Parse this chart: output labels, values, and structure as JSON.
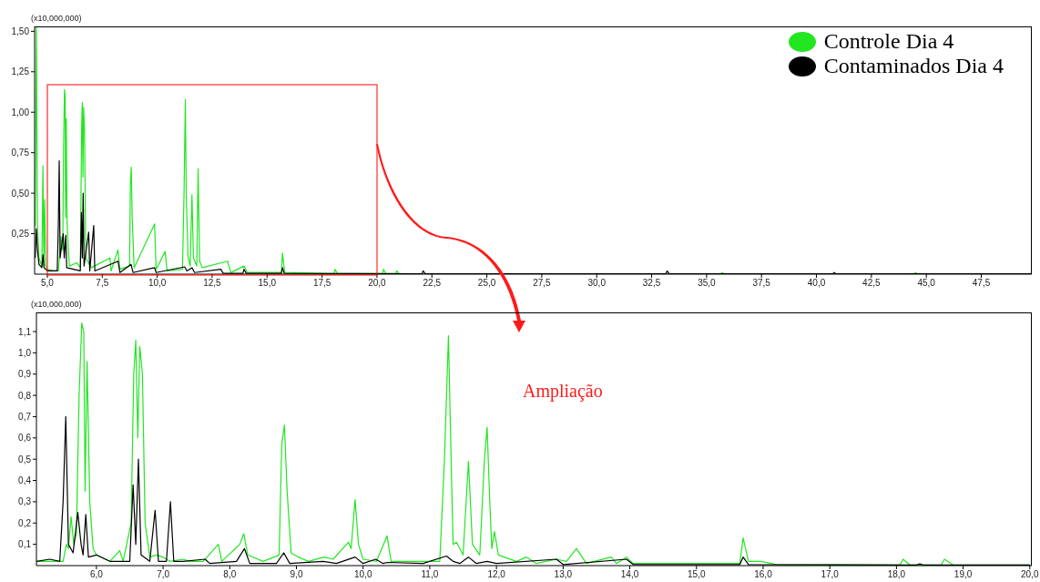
{
  "chart_data": [
    {
      "type": "line",
      "ylabel": "(x10,000,000)",
      "xlim": [
        4.42,
        49.8
      ],
      "ylim": [
        0,
        1.53
      ],
      "xticks": [
        {
          "value": 5,
          "label": "5,0"
        },
        {
          "value": 7.5,
          "label": "7,5"
        },
        {
          "value": 10,
          "label": "10,0"
        },
        {
          "value": 12.5,
          "label": "12,5"
        },
        {
          "value": 15,
          "label": "15,0"
        },
        {
          "value": 17.5,
          "label": "17,5"
        },
        {
          "value": 20,
          "label": "20,0"
        },
        {
          "value": 22.5,
          "label": "22,5"
        },
        {
          "value": 25,
          "label": "25,0"
        },
        {
          "value": 27.5,
          "label": "27,5"
        },
        {
          "value": 30,
          "label": "30,0"
        },
        {
          "value": 32.5,
          "label": "32,5"
        },
        {
          "value": 35,
          "label": "35,0"
        },
        {
          "value": 37.5,
          "label": "37,5"
        },
        {
          "value": 40,
          "label": "40,0"
        },
        {
          "value": 42.5,
          "label": "42,5"
        },
        {
          "value": 45,
          "label": "45,0"
        },
        {
          "value": 47.5,
          "label": "47,5"
        }
      ],
      "yticks": [
        {
          "value": 0.25,
          "label": "0,25"
        },
        {
          "value": 0.5,
          "label": "0,50"
        },
        {
          "value": 0.75,
          "label": "0,75"
        },
        {
          "value": 1.0,
          "label": "1,00"
        },
        {
          "value": 1.25,
          "label": "1,25"
        },
        {
          "value": 1.5,
          "label": "1,50"
        }
      ],
      "legend": "top right",
      "marker": "none",
      "line_style": "solid",
      "series": [
        {
          "name": "Controle Dia 4",
          "color": "#22e622",
          "x": [
            4.45,
            4.5,
            4.55,
            4.62,
            4.75,
            4.8,
            4.84,
            4.88,
            4.92,
            4.97,
            5.3,
            5.5,
            5.55,
            5.62,
            5.7,
            5.74,
            5.78,
            5.81,
            5.83,
            5.86,
            5.9,
            6.0,
            6.35,
            6.5,
            6.56,
            6.59,
            6.62,
            6.65,
            6.69,
            6.75,
            7.0,
            7.85,
            7.9,
            8.21,
            8.3,
            8.74,
            8.78,
            8.82,
            8.86,
            8.95,
            9.88,
            9.95,
            10.36,
            10.45,
            11.15,
            11.22,
            11.28,
            11.32,
            11.4,
            11.5,
            11.58,
            11.65,
            11.8,
            11.86,
            11.93,
            12.05,
            13.2,
            13.35,
            13.95,
            14.1,
            15.65,
            15.7,
            15.8,
            18.05,
            18.1,
            18.2,
            20.25,
            20.3,
            20.4,
            20.85,
            20.9,
            21.0,
            35.65,
            35.7,
            35.8,
            44.45,
            44.5,
            44.6,
            49.8
          ],
          "values": [
            0.3,
            1.53,
            0.3,
            0.1,
            0.05,
            0.67,
            0.05,
            0.46,
            0.06,
            0.03,
            0.02,
            0.02,
            0.1,
            0.23,
            0.15,
            0.8,
            1.14,
            1.1,
            0.35,
            0.96,
            0.3,
            0.05,
            0.07,
            0.04,
            0.9,
            1.06,
            0.6,
            1.03,
            0.9,
            0.1,
            0.04,
            0.1,
            0.02,
            0.15,
            0.03,
            0.05,
            0.57,
            0.66,
            0.35,
            0.04,
            0.31,
            0.03,
            0.14,
            0.02,
            0.03,
            0.5,
            1.08,
            0.5,
            0.11,
            0.05,
            0.49,
            0.1,
            0.05,
            0.65,
            0.08,
            0.04,
            0.08,
            0.01,
            0.05,
            0.01,
            0.01,
            0.13,
            0.01,
            0.003,
            0.03,
            0.003,
            0.003,
            0.03,
            0.003,
            0.003,
            0.02,
            0.003,
            0.002,
            0.01,
            0.002,
            0.002,
            0.01,
            0.002,
            0.002
          ]
        },
        {
          "name": "Contaminados Dia 4",
          "color": "#000000",
          "x": [
            4.45,
            4.5,
            4.55,
            4.62,
            4.75,
            4.8,
            4.85,
            5.0,
            5.45,
            5.5,
            5.54,
            5.58,
            5.72,
            5.77,
            5.84,
            5.88,
            6.5,
            6.55,
            6.59,
            6.63,
            6.67,
            6.88,
            6.93,
            7.11,
            7.16,
            8.22,
            8.3,
            8.81,
            8.9,
            9.88,
            9.95,
            11.25,
            11.35,
            11.58,
            11.7,
            12.9,
            13.0,
            13.9,
            13.95,
            14.05,
            15.65,
            15.7,
            15.78,
            22.05,
            22.1,
            22.2,
            33.15,
            33.2,
            33.3,
            40.75,
            40.8,
            40.9,
            49.8
          ],
          "values": [
            0.1,
            0.28,
            0.15,
            0.06,
            0.04,
            0.12,
            0.04,
            0.02,
            0.02,
            0.3,
            0.7,
            0.1,
            0.25,
            0.1,
            0.24,
            0.04,
            0.02,
            0.38,
            0.1,
            0.5,
            0.05,
            0.26,
            0.02,
            0.3,
            0.02,
            0.08,
            0.01,
            0.06,
            0.01,
            0.04,
            0.01,
            0.045,
            0.02,
            0.04,
            0.01,
            0.03,
            0.005,
            0.005,
            0.03,
            0.005,
            0.005,
            0.04,
            0.005,
            0.002,
            0.02,
            0.002,
            0.002,
            0.02,
            0.002,
            0.002,
            0.01,
            0.002,
            0.002
          ]
        }
      ]
    },
    {
      "type": "line",
      "ylabel": "(x10,000,000)",
      "xlim": [
        5.1,
        20.03
      ],
      "ylim": [
        0,
        1.19
      ],
      "xticks": [
        {
          "value": 6,
          "label": "6,0"
        },
        {
          "value": 7,
          "label": "7,0"
        },
        {
          "value": 8,
          "label": "8,0"
        },
        {
          "value": 9,
          "label": "9,0"
        },
        {
          "value": 10,
          "label": "10,0"
        },
        {
          "value": 11,
          "label": "11,0"
        },
        {
          "value": 12,
          "label": "12,0"
        },
        {
          "value": 13,
          "label": "13,0"
        },
        {
          "value": 14,
          "label": "14,0"
        },
        {
          "value": 15,
          "label": "15,0"
        },
        {
          "value": 16,
          "label": "16,0"
        },
        {
          "value": 17,
          "label": "17,0"
        },
        {
          "value": 18,
          "label": "18,0"
        },
        {
          "value": 19,
          "label": "19,0"
        },
        {
          "value": 20,
          "label": "20,0"
        }
      ],
      "yticks": [
        {
          "value": 0.1,
          "label": "0,1"
        },
        {
          "value": 0.2,
          "label": "0,2"
        },
        {
          "value": 0.3,
          "label": "0,3"
        },
        {
          "value": 0.4,
          "label": "0,4"
        },
        {
          "value": 0.5,
          "label": "0,5"
        },
        {
          "value": 0.6,
          "label": "0,6"
        },
        {
          "value": 0.7,
          "label": "0,7"
        },
        {
          "value": 0.8,
          "label": "0,8"
        },
        {
          "value": 0.9,
          "label": "0,9"
        },
        {
          "value": 1.0,
          "label": "1,0"
        },
        {
          "value": 1.1,
          "label": "1,1"
        }
      ],
      "marker": "none",
      "line_style": "solid",
      "annotations": [
        "Ampliação"
      ],
      "series": [
        {
          "color": "#22e622",
          "x": [
            5.1,
            5.3,
            5.5,
            5.55,
            5.58,
            5.62,
            5.66,
            5.7,
            5.74,
            5.78,
            5.81,
            5.83,
            5.86,
            5.9,
            5.95,
            6.0,
            6.2,
            6.35,
            6.4,
            6.52,
            6.56,
            6.59,
            6.62,
            6.65,
            6.69,
            6.73,
            6.8,
            6.9,
            7.0,
            7.1,
            7.3,
            7.4,
            7.6,
            7.83,
            7.88,
            8.15,
            8.21,
            8.27,
            8.5,
            8.74,
            8.78,
            8.82,
            8.86,
            8.92,
            9.03,
            9.18,
            9.41,
            9.55,
            9.78,
            9.82,
            9.88,
            9.93,
            10.0,
            10.2,
            10.36,
            10.42,
            10.55,
            11.0,
            11.15,
            11.22,
            11.28,
            11.32,
            11.35,
            11.4,
            11.5,
            11.58,
            11.64,
            11.75,
            11.82,
            11.86,
            11.9,
            11.93,
            11.97,
            12.03,
            12.3,
            12.45,
            12.6,
            12.9,
            13.05,
            13.2,
            13.35,
            13.72,
            13.8,
            13.95,
            14.05,
            15.15,
            15.65,
            15.7,
            15.78,
            15.97,
            16.2,
            18.05,
            18.1,
            18.2,
            18.67,
            18.72,
            18.85,
            20.0
          ],
          "values": [
            0.02,
            0.02,
            0.02,
            0.1,
            0.08,
            0.23,
            0.1,
            0.15,
            0.8,
            1.14,
            1.1,
            0.35,
            0.96,
            0.3,
            0.08,
            0.05,
            0.02,
            0.07,
            0.02,
            0.2,
            0.9,
            1.06,
            0.6,
            1.03,
            0.9,
            0.2,
            0.04,
            0.05,
            0.04,
            0.02,
            0.03,
            0.02,
            0.02,
            0.1,
            0.02,
            0.1,
            0.15,
            0.05,
            0.02,
            0.05,
            0.57,
            0.66,
            0.35,
            0.06,
            0.04,
            0.02,
            0.04,
            0.03,
            0.11,
            0.08,
            0.31,
            0.1,
            0.03,
            0.02,
            0.14,
            0.02,
            0.02,
            0.02,
            0.02,
            0.5,
            1.08,
            0.5,
            0.1,
            0.11,
            0.05,
            0.49,
            0.1,
            0.05,
            0.5,
            0.65,
            0.3,
            0.08,
            0.16,
            0.05,
            0.02,
            0.04,
            0.01,
            0.03,
            0.02,
            0.08,
            0.01,
            0.04,
            0.01,
            0.04,
            0.01,
            0.01,
            0.01,
            0.13,
            0.02,
            0.02,
            0.005,
            0.003,
            0.03,
            0.003,
            0.003,
            0.03,
            0.003,
            0.003
          ]
        },
        {
          "color": "#000000",
          "x": [
            5.1,
            5.3,
            5.45,
            5.5,
            5.54,
            5.58,
            5.65,
            5.72,
            5.77,
            5.8,
            5.84,
            5.88,
            6.0,
            6.2,
            6.5,
            6.55,
            6.59,
            6.63,
            6.67,
            6.8,
            6.88,
            6.93,
            7.05,
            7.11,
            7.16,
            7.3,
            7.63,
            7.7,
            8.1,
            8.22,
            8.3,
            8.7,
            8.81,
            8.9,
            9.4,
            9.6,
            9.88,
            10.0,
            10.19,
            10.3,
            10.36,
            10.9,
            11.25,
            11.35,
            11.45,
            11.58,
            11.7,
            11.86,
            12.0,
            12.9,
            13.0,
            13.95,
            14.05,
            15.65,
            15.7,
            15.78,
            18.3,
            18.35,
            18.4,
            20.0
          ],
          "values": [
            0.02,
            0.03,
            0.02,
            0.3,
            0.7,
            0.1,
            0.06,
            0.25,
            0.1,
            0.05,
            0.24,
            0.04,
            0.05,
            0.02,
            0.02,
            0.38,
            0.1,
            0.5,
            0.05,
            0.02,
            0.26,
            0.02,
            0.02,
            0.3,
            0.02,
            0.02,
            0.03,
            0.01,
            0.02,
            0.08,
            0.01,
            0.01,
            0.06,
            0.01,
            0.02,
            0.01,
            0.04,
            0.01,
            0.03,
            0.01,
            0.015,
            0.01,
            0.045,
            0.02,
            0.01,
            0.04,
            0.01,
            0.02,
            0.01,
            0.03,
            0.005,
            0.03,
            0.005,
            0.005,
            0.04,
            0.005,
            0.003,
            0.008,
            0.003,
            0.003
          ]
        }
      ]
    }
  ]
}
